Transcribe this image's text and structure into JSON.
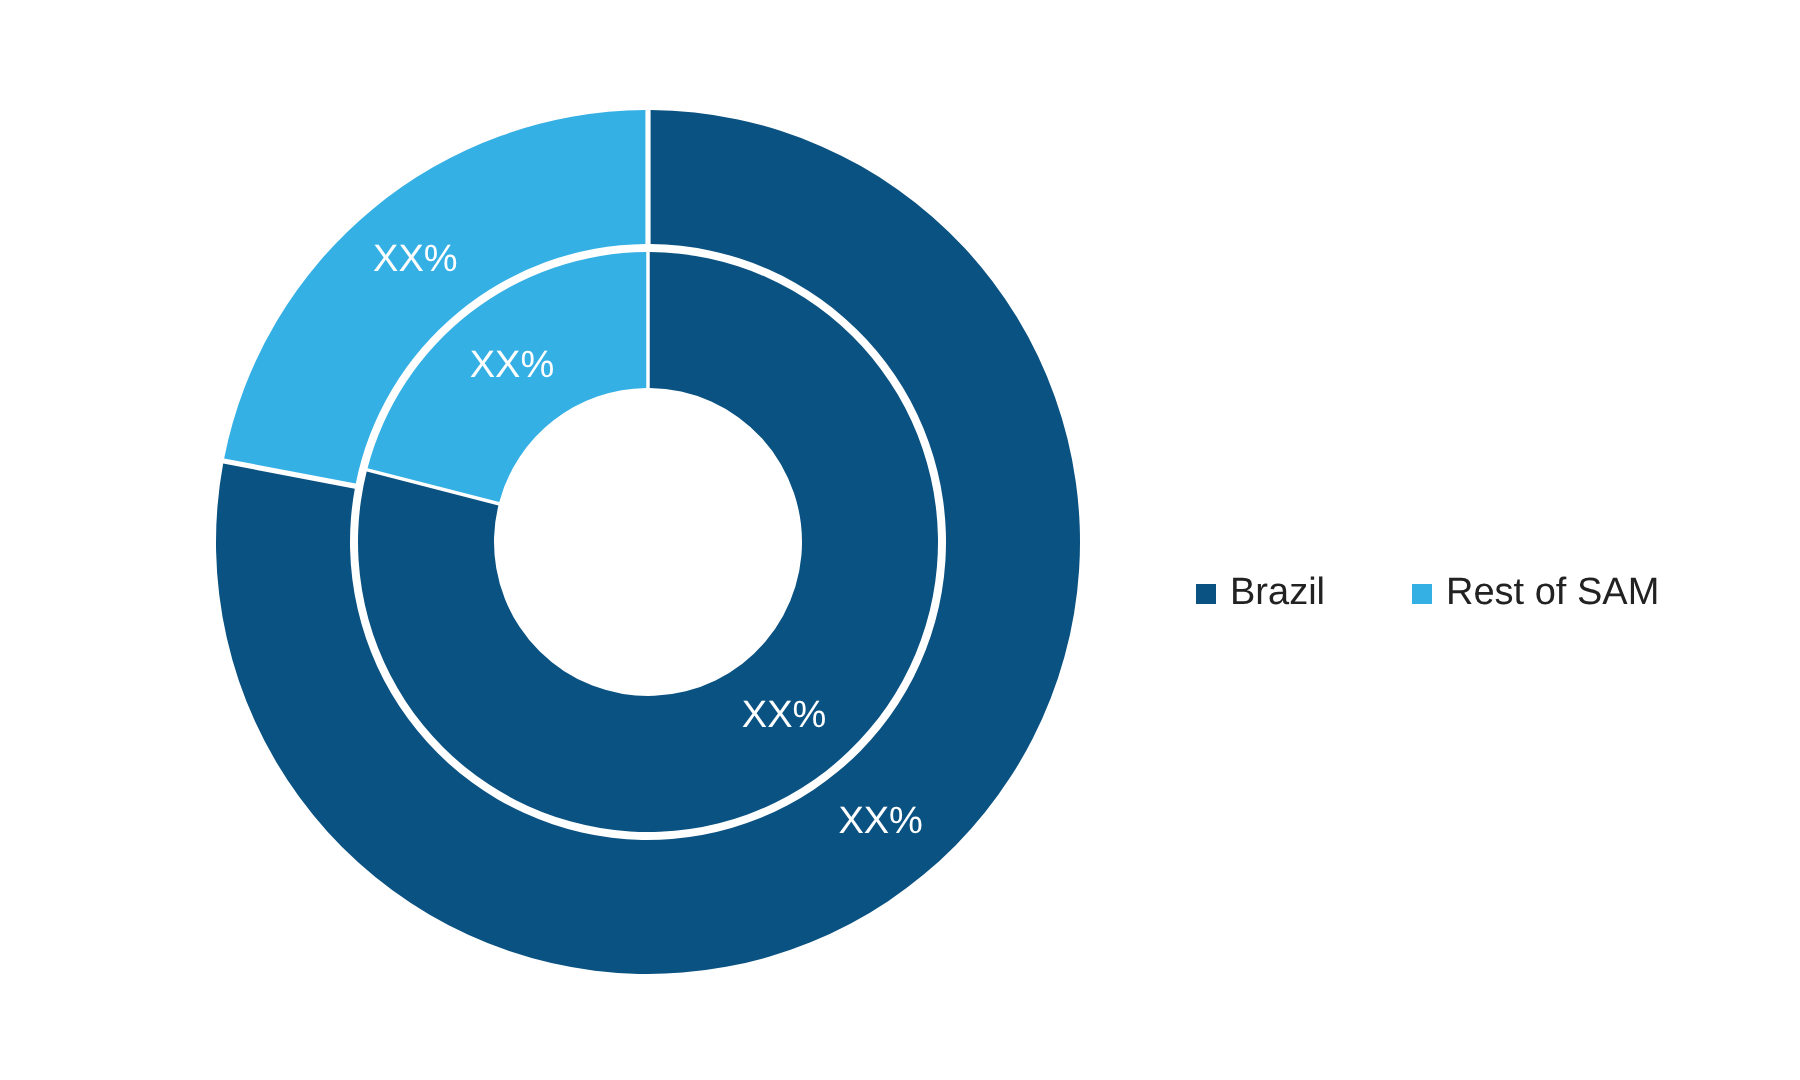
{
  "chart_data": {
    "type": "donut",
    "categories": [
      "Brazil",
      "Rest of SAM"
    ],
    "colors": [
      "#0a5282",
      "#35b0e5"
    ],
    "legend": "right",
    "series": [
      {
        "values": [
          79,
          21
        ],
        "value_labels": [
          "XX%",
          "XX%"
        ]
      },
      {
        "values": [
          78,
          22
        ],
        "value_labels": [
          "XX%",
          "XX%"
        ]
      }
    ]
  }
}
